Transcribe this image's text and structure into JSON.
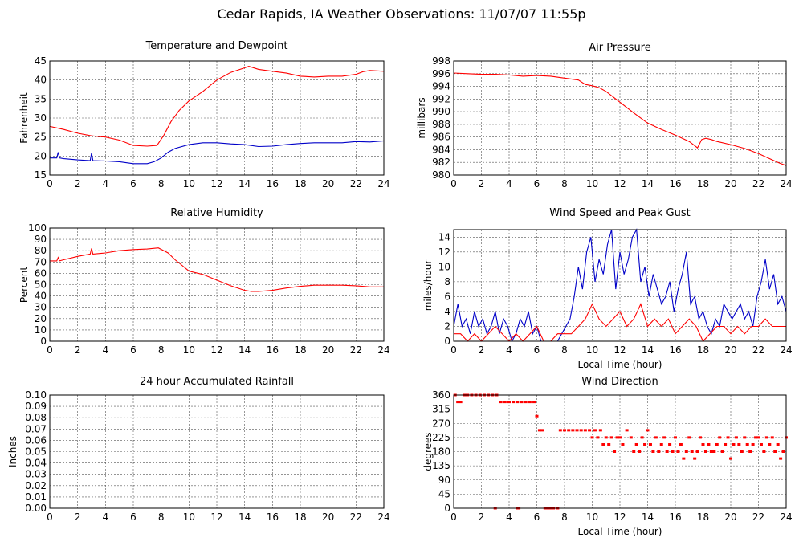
{
  "page": {
    "title": "Cedar Rapids, IA Weather Observations: 11/07/07 11:55p"
  },
  "chart_data": [
    {
      "id": "temp",
      "type": "line",
      "title": "Temperature and Dewpoint",
      "xlabel": "",
      "ylabel": "Fahrenheit",
      "xlim": [
        0,
        24
      ],
      "ylim": [
        15,
        45
      ],
      "xticks": [
        0,
        2,
        4,
        6,
        8,
        10,
        12,
        14,
        16,
        18,
        20,
        22,
        24
      ],
      "yticks": [
        15,
        20,
        25,
        30,
        35,
        40,
        45
      ],
      "grid": true,
      "series": [
        {
          "color": "#ff0000",
          "x": [
            0,
            1,
            2,
            3,
            4,
            5,
            6,
            7,
            7.7,
            8.2,
            8.7,
            9.3,
            10,
            11,
            12,
            13,
            14,
            14.3,
            15,
            16,
            17,
            18,
            19,
            20,
            21,
            22,
            22.5,
            23,
            24
          ],
          "y": [
            27.8,
            27,
            26,
            25.3,
            25,
            24.2,
            22.8,
            22.6,
            22.8,
            25.5,
            29,
            32,
            34.5,
            37,
            40,
            42,
            43.2,
            43.6,
            42.8,
            42.3,
            41.8,
            41,
            40.8,
            41,
            41,
            41.5,
            42.2,
            42.5,
            42.3
          ]
        },
        {
          "color": "#0000c8",
          "x": [
            0,
            0.5,
            0.6,
            0.7,
            1,
            2,
            2.9,
            3.0,
            3.1,
            4,
            5,
            6,
            7,
            7.5,
            8,
            8.5,
            9,
            10,
            11,
            12,
            13,
            14,
            15,
            16,
            17,
            18,
            19,
            20,
            21,
            22,
            23,
            24
          ],
          "y": [
            19.5,
            19.5,
            21,
            19.5,
            19.3,
            19,
            18.8,
            20.8,
            18.8,
            18.7,
            18.5,
            18,
            18,
            18.5,
            19.5,
            21,
            22,
            23,
            23.5,
            23.5,
            23.2,
            23,
            22.5,
            22.6,
            23,
            23.3,
            23.5,
            23.5,
            23.5,
            23.8,
            23.7,
            24
          ]
        }
      ]
    },
    {
      "id": "pressure",
      "type": "line",
      "title": "Air Pressure",
      "xlabel": "",
      "ylabel": "millibars",
      "xlim": [
        0,
        24
      ],
      "ylim": [
        980,
        998
      ],
      "xticks": [
        0,
        2,
        4,
        6,
        8,
        10,
        12,
        14,
        16,
        18,
        20,
        22,
        24
      ],
      "yticks": [
        980,
        982,
        984,
        986,
        988,
        990,
        992,
        994,
        996,
        998
      ],
      "grid": true,
      "series": [
        {
          "color": "#ff0000",
          "x": [
            0,
            1,
            2,
            3,
            4,
            5,
            6,
            7,
            8,
            9,
            9.5,
            10,
            10.5,
            11,
            12,
            13,
            14,
            15,
            16,
            17,
            17.6,
            17.9,
            18.2,
            18.6,
            19,
            20,
            21,
            22,
            23,
            23.5,
            24
          ],
          "y": [
            996.1,
            996,
            995.9,
            995.9,
            995.8,
            995.6,
            995.7,
            995.6,
            995.3,
            995,
            994.3,
            994.1,
            993.8,
            993.2,
            991.5,
            989.8,
            988.2,
            987.2,
            986.3,
            985.3,
            984.3,
            985.6,
            985.8,
            985.6,
            985.3,
            984.8,
            984.2,
            983.4,
            982.4,
            981.9,
            981.5
          ]
        }
      ]
    },
    {
      "id": "humidity",
      "type": "line",
      "title": "Relative Humidity",
      "xlabel": "",
      "ylabel": "Percent",
      "xlim": [
        0,
        24
      ],
      "ylim": [
        0,
        100
      ],
      "xticks": [
        0,
        2,
        4,
        6,
        8,
        10,
        12,
        14,
        16,
        18,
        20,
        22,
        24
      ],
      "yticks": [
        0,
        10,
        20,
        30,
        40,
        50,
        60,
        70,
        80,
        90,
        100
      ],
      "grid": true,
      "series": [
        {
          "color": "#ff0000",
          "x": [
            0,
            0.5,
            0.6,
            0.7,
            1,
            2,
            2.9,
            3.0,
            3.1,
            4,
            5,
            6,
            7,
            7.8,
            8.5,
            9,
            9.5,
            10,
            11,
            12,
            13,
            14,
            14.5,
            15,
            16,
            17,
            18,
            19,
            20,
            21,
            22,
            23,
            24
          ],
          "y": [
            71,
            71,
            74,
            71,
            72,
            75,
            77,
            82,
            77,
            78,
            80,
            81,
            81.5,
            82.5,
            78,
            72,
            67,
            62,
            59,
            54,
            49,
            45,
            44,
            44,
            45,
            47,
            48.5,
            49.5,
            49.5,
            49.5,
            49,
            48,
            48
          ]
        }
      ]
    },
    {
      "id": "wind",
      "type": "line",
      "title": "Wind Speed and Peak Gust",
      "xlabel": "Local Time (hour)",
      "ylabel": "miles/hour",
      "xlim": [
        0,
        24
      ],
      "ylim": [
        0,
        15
      ],
      "xticks": [
        0,
        2,
        4,
        6,
        8,
        10,
        12,
        14,
        16,
        18,
        20,
        22,
        24
      ],
      "yticks": [
        0,
        2,
        4,
        6,
        8,
        10,
        12,
        14
      ],
      "grid": true,
      "series": [
        {
          "color": "#0000c8",
          "x": [
            0,
            0.3,
            0.6,
            0.9,
            1.2,
            1.5,
            1.8,
            2.1,
            2.4,
            2.7,
            3.0,
            3.3,
            3.6,
            3.9,
            4.2,
            4.5,
            4.8,
            5.1,
            5.4,
            5.7,
            6.0,
            6.3,
            6.6,
            6.9,
            7.2,
            7.5,
            7.8,
            8.1,
            8.4,
            8.7,
            9.0,
            9.3,
            9.6,
            9.9,
            10.2,
            10.5,
            10.8,
            11.1,
            11.4,
            11.7,
            12.0,
            12.3,
            12.6,
            12.9,
            13.2,
            13.5,
            13.8,
            14.1,
            14.4,
            14.7,
            15.0,
            15.3,
            15.6,
            15.9,
            16.2,
            16.5,
            16.8,
            17.1,
            17.4,
            17.7,
            18.0,
            18.3,
            18.6,
            18.9,
            19.2,
            19.5,
            19.8,
            20.1,
            20.4,
            20.7,
            21.0,
            21.3,
            21.6,
            21.9,
            22.2,
            22.5,
            22.8,
            23.1,
            23.4,
            23.7,
            24.0
          ],
          "y": [
            2,
            5,
            2,
            3,
            1,
            4,
            2,
            3,
            1,
            2,
            4,
            1,
            3,
            2,
            0,
            1,
            3,
            2,
            4,
            1,
            2,
            0,
            0,
            0,
            0,
            0,
            1,
            2,
            3,
            6,
            10,
            7,
            12,
            14,
            8,
            11,
            9,
            13,
            15,
            7,
            12,
            9,
            11,
            14,
            15,
            8,
            10,
            6,
            9,
            7,
            5,
            6,
            8,
            4,
            7,
            9,
            12,
            5,
            6,
            3,
            4,
            2,
            1,
            3,
            2,
            5,
            4,
            3,
            4,
            5,
            3,
            4,
            2,
            6,
            8,
            11,
            7,
            9,
            5,
            6,
            4
          ]
        },
        {
          "color": "#ff0000",
          "x": [
            0,
            0.5,
            1.0,
            1.5,
            2.0,
            2.5,
            3.0,
            3.5,
            4.0,
            4.5,
            5.0,
            5.5,
            6.0,
            6.5,
            7.0,
            7.5,
            8.0,
            8.5,
            9.0,
            9.5,
            10.0,
            10.5,
            11.0,
            11.5,
            12.0,
            12.5,
            13.0,
            13.5,
            14.0,
            14.5,
            15.0,
            15.5,
            16.0,
            16.5,
            17.0,
            17.5,
            18.0,
            18.5,
            19.0,
            19.5,
            20.0,
            20.5,
            21.0,
            21.5,
            22.0,
            22.5,
            23.0,
            23.5,
            24.0
          ],
          "y": [
            1,
            1,
            0,
            1,
            0,
            1,
            2,
            1,
            0,
            1,
            0,
            1,
            2,
            0,
            0,
            1,
            1,
            1,
            2,
            3,
            5,
            3,
            2,
            3,
            4,
            2,
            3,
            5,
            2,
            3,
            2,
            3,
            1,
            2,
            3,
            2,
            0,
            1,
            2,
            2,
            1,
            2,
            1,
            2,
            2,
            3,
            2,
            2,
            2
          ]
        }
      ]
    },
    {
      "id": "rain",
      "type": "line",
      "title": "24 hour Accumulated Rainfall",
      "xlabel": "",
      "ylabel": "Inches",
      "xlim": [
        0,
        24
      ],
      "ylim": [
        0,
        0.1
      ],
      "xticks": [
        0,
        2,
        4,
        6,
        8,
        10,
        12,
        14,
        16,
        18,
        20,
        22,
        24
      ],
      "yticks": [
        "0.00",
        "0.01",
        "0.02",
        "0.03",
        "0.04",
        "0.05",
        "0.06",
        "0.07",
        "0.08",
        "0.09",
        "0.10"
      ],
      "grid": true,
      "series": [
        {
          "color": "#ff0000",
          "x": [
            0,
            24
          ],
          "y": [
            0,
            0
          ]
        }
      ]
    },
    {
      "id": "direction",
      "type": "scatter",
      "title": "Wind Direction",
      "xlabel": "Local Time (hour)",
      "ylabel": "degrees",
      "xlim": [
        0,
        24
      ],
      "ylim": [
        0,
        360
      ],
      "xticks": [
        0,
        2,
        4,
        6,
        8,
        10,
        12,
        14,
        16,
        18,
        20,
        22,
        24
      ],
      "yticks": [
        0,
        45,
        90,
        135,
        180,
        225,
        270,
        315,
        360
      ],
      "grid": true,
      "series": [
        {
          "color": "#ff0000",
          "x": [
            0.1,
            0.3,
            0.5,
            0.8,
            1.0,
            1.3,
            1.6,
            1.9,
            2.2,
            2.5,
            2.8,
            3.1,
            3.4,
            3.7,
            4.0,
            4.3,
            4.6,
            4.9,
            5.2,
            5.5,
            5.8,
            6.0,
            6.2,
            6.4,
            6.6,
            6.8,
            7.0,
            7.2,
            7.5,
            7.7,
            8.0,
            8.3,
            8.6,
            8.9,
            9.2,
            9.5,
            9.8,
            10.0,
            10.2,
            10.4,
            10.6,
            10.8,
            11.0,
            11.2,
            11.4,
            11.6,
            11.8,
            12.0,
            12.2,
            12.5,
            12.8,
            13.0,
            13.2,
            13.4,
            13.6,
            13.8,
            14.0,
            14.2,
            14.4,
            14.6,
            14.8,
            15.0,
            15.2,
            15.4,
            15.6,
            15.8,
            16.0,
            16.2,
            16.4,
            16.6,
            16.8,
            17.0,
            17.2,
            17.4,
            17.6,
            17.8,
            18.0,
            18.2,
            18.4,
            18.6,
            18.8,
            19.0,
            19.2,
            19.4,
            19.6,
            19.8,
            20.0,
            20.2,
            20.4,
            20.6,
            20.8,
            21.0,
            21.2,
            21.4,
            21.6,
            21.8,
            22.0,
            22.2,
            22.4,
            22.6,
            22.8,
            23.0,
            23.2,
            23.4,
            23.6,
            23.8,
            24.0,
            3.0,
            4.6,
            4.7
          ],
          "y": [
            360,
            338,
            338,
            360,
            360,
            360,
            360,
            360,
            360,
            360,
            360,
            360,
            338,
            338,
            338,
            338,
            338,
            338,
            338,
            338,
            338,
            293,
            248,
            248,
            0,
            0,
            0,
            0,
            0,
            248,
            248,
            248,
            248,
            248,
            248,
            248,
            248,
            225,
            248,
            225,
            248,
            203,
            225,
            203,
            225,
            180,
            225,
            225,
            203,
            248,
            225,
            180,
            203,
            180,
            225,
            203,
            248,
            203,
            180,
            225,
            180,
            203,
            225,
            180,
            203,
            180,
            225,
            180,
            203,
            158,
            180,
            225,
            180,
            158,
            180,
            225,
            203,
            180,
            203,
            180,
            180,
            203,
            225,
            180,
            203,
            225,
            158,
            203,
            225,
            203,
            180,
            225,
            203,
            180,
            203,
            225,
            225,
            203,
            180,
            225,
            203,
            225,
            180,
            203,
            158,
            180,
            225,
            0,
            0,
            0
          ]
        }
      ]
    }
  ]
}
